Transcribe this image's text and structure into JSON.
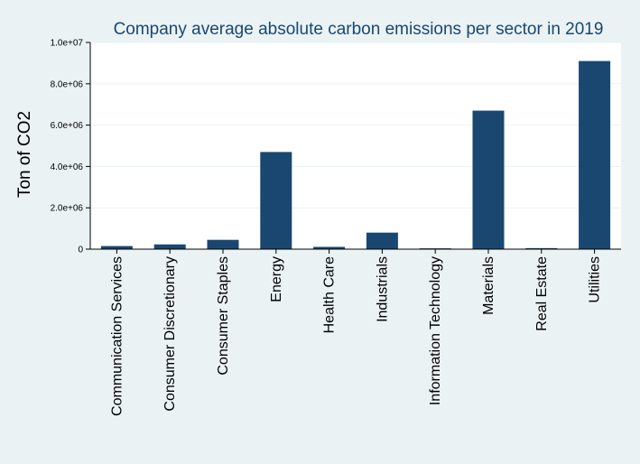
{
  "colors": {
    "background": "#eaf2f3",
    "plot_background": "#ffffff",
    "bar": "#1a476f",
    "title": "#1a476f",
    "grid": "#eaf2f3",
    "axis": "#000000"
  },
  "chart_data": {
    "type": "bar",
    "title": "Company average absolute carbon emissions per sector in 2019",
    "xlabel": "",
    "ylabel": "Ton of CO2",
    "categories": [
      "Communication Services",
      "Consumer Discretionary",
      "Consumer Staples",
      "Energy",
      "Health Care",
      "Industrials",
      "Information Technology",
      "Materials",
      "Real Estate",
      "Utilities"
    ],
    "values": [
      150000,
      230000,
      450000,
      4700000,
      110000,
      800000,
      40000,
      6700000,
      50000,
      9100000
    ],
    "ylim": [
      0,
      10000000
    ],
    "yticks": [
      0,
      2000000,
      4000000,
      6000000,
      8000000,
      10000000
    ],
    "ytick_labels": [
      "0",
      "2.0e+06",
      "4.0e+06",
      "6.0e+06",
      "8.0e+06",
      "1.0e+07"
    ],
    "grid": true,
    "legend": false
  }
}
